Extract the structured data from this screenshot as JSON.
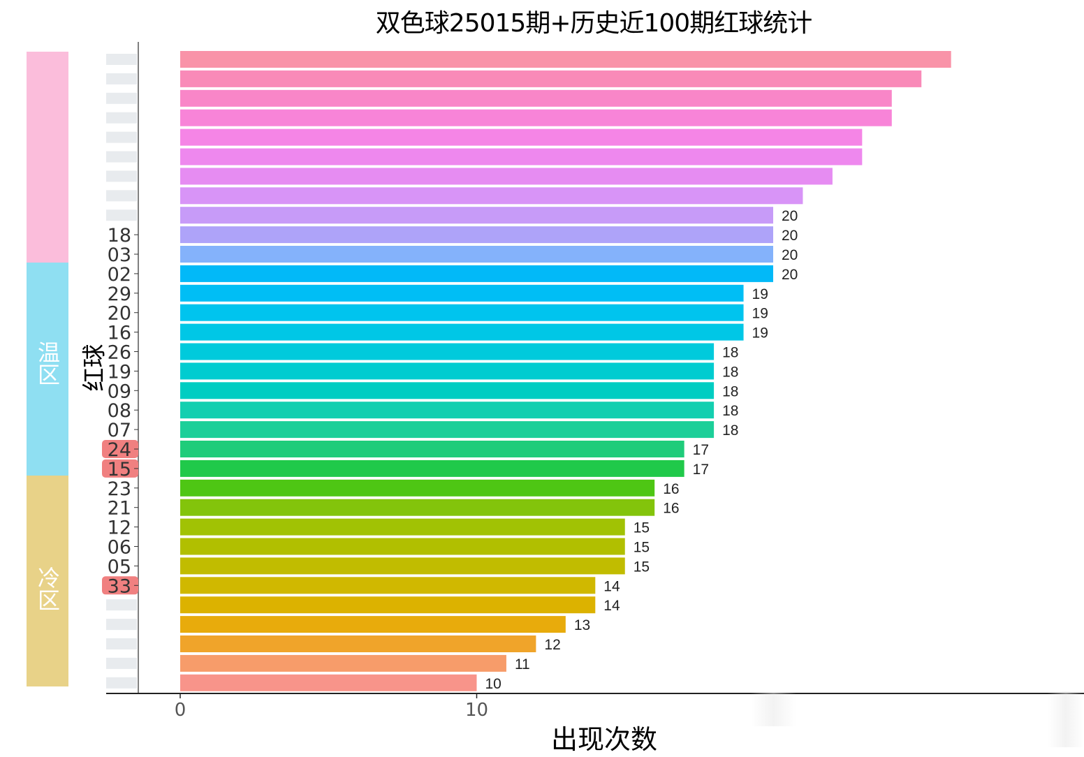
{
  "chart_data": {
    "type": "bar",
    "orientation": "horizontal",
    "title": "双色球25015期+历史近100期红球统计",
    "xlabel": "出现次数",
    "ylabel": "红球",
    "xticks": [
      "0",
      "10"
    ],
    "xlim": [
      0,
      30
    ],
    "zones": [
      {
        "label": "",
        "color": "#fbbddb"
      },
      {
        "label": "温区",
        "color": "#8fdff2"
      },
      {
        "label": "冷区",
        "color": "#e8d288"
      }
    ],
    "bars": [
      {
        "category": "",
        "value": 26,
        "label": "",
        "color": "#f993a8"
      },
      {
        "category": "",
        "value": 25,
        "label": "",
        "color": "#f98ab8"
      },
      {
        "category": "",
        "value": 24,
        "label": "",
        "color": "#f986c8"
      },
      {
        "category": "",
        "value": 24,
        "label": "",
        "color": "#f884d8"
      },
      {
        "category": "",
        "value": 23,
        "label": "",
        "color": "#f585e6"
      },
      {
        "category": "",
        "value": 23,
        "label": "",
        "color": "#ee88ee"
      },
      {
        "category": "",
        "value": 22,
        "label": "",
        "color": "#e68cf2"
      },
      {
        "category": "",
        "value": 21,
        "label": "",
        "color": "#d894f7"
      },
      {
        "category": "",
        "value": 20,
        "label": "20",
        "color": "#c79bf8"
      },
      {
        "category": "18",
        "value": 20,
        "label": "20",
        "color": "#aea3f9"
      },
      {
        "category": "03",
        "value": 20,
        "label": "20",
        "color": "#84b2fb"
      },
      {
        "category": "02",
        "value": 20,
        "label": "20",
        "color": "#02b9f8"
      },
      {
        "category": "29",
        "value": 19,
        "label": "19",
        "color": "#00bef5"
      },
      {
        "category": "20",
        "value": 19,
        "label": "19",
        "color": "#00c4ee"
      },
      {
        "category": "16",
        "value": 19,
        "label": "19",
        "color": "#00c7e6"
      },
      {
        "category": "26",
        "value": 18,
        "label": "18",
        "color": "#00cadc"
      },
      {
        "category": "19",
        "value": 18,
        "label": "18",
        "color": "#00ccd0"
      },
      {
        "category": "09",
        "value": 18,
        "label": "18",
        "color": "#00cdc2"
      },
      {
        "category": "08",
        "value": 18,
        "label": "18",
        "color": "#13cfb0"
      },
      {
        "category": "07",
        "value": 18,
        "label": "18",
        "color": "#1ccf99"
      },
      {
        "category": "24",
        "value": 17,
        "label": "17",
        "color": "#1fcc7a",
        "highlight": true
      },
      {
        "category": "15",
        "value": 17,
        "label": "17",
        "color": "#20c94a",
        "highlight": true
      },
      {
        "category": "23",
        "value": 16,
        "label": "16",
        "color": "#4ec614"
      },
      {
        "category": "21",
        "value": 16,
        "label": "16",
        "color": "#83c40b"
      },
      {
        "category": "12",
        "value": 15,
        "label": "15",
        "color": "#a1c204"
      },
      {
        "category": "06",
        "value": 15,
        "label": "15",
        "color": "#b1bf00"
      },
      {
        "category": "05",
        "value": 15,
        "label": "15",
        "color": "#c1bc00"
      },
      {
        "category": "33",
        "value": 14,
        "label": "14",
        "color": "#d0b800",
        "highlight": true
      },
      {
        "category": "",
        "value": 14,
        "label": "14",
        "color": "#dcb200"
      },
      {
        "category": "",
        "value": 13,
        "label": "13",
        "color": "#e8ab0c"
      },
      {
        "category": "",
        "value": 12,
        "label": "12",
        "color": "#f0a42a"
      },
      {
        "category": "",
        "value": 11,
        "label": "11",
        "color": "#f79c6a"
      },
      {
        "category": "",
        "value": 10,
        "label": "10",
        "color": "#f8948a"
      }
    ],
    "highlight_color": "#f08080"
  }
}
